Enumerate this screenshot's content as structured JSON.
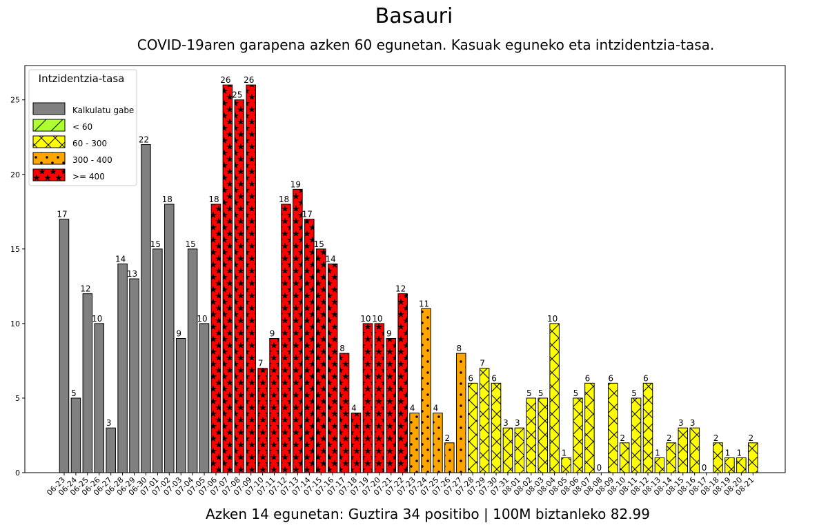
{
  "title": "Basauri",
  "subtitle": "COVID-19aren garapena azken 60 egunetan. Kasuak eguneko eta intzidentzia-tasa.",
  "footer": "Azken 14 egunetan: Guztira 34 positibo | 100M biztanleko 82.99",
  "colors": {
    "none": "#808080",
    "lt60": "#adff2f",
    "c60_300": "#ffff00",
    "c300_400": "#ffa500",
    "ge400": "#ff0000"
  },
  "legend": {
    "title": "Intzidentzia-tasa",
    "placement": "upper-left",
    "items": [
      {
        "label": "Kalkulatu gabe",
        "category": "none",
        "pattern": "none"
      },
      {
        "label": "< 60",
        "category": "lt60",
        "pattern": "slash"
      },
      {
        "label": "60 - 300",
        "category": "c60_300",
        "pattern": "cross"
      },
      {
        "label": "300 - 400",
        "category": "c300_400",
        "pattern": "dots"
      },
      {
        "label": ">= 400",
        "category": "ge400",
        "pattern": "stars"
      }
    ]
  },
  "chart_data": {
    "type": "bar",
    "ylim": [
      0,
      27.3
    ],
    "yticks": [
      0,
      5,
      10,
      15,
      20,
      25
    ],
    "categories": [
      "06-23",
      "06-24",
      "06-25",
      "06-26",
      "06-27",
      "06-28",
      "06-29",
      "06-30",
      "07-01",
      "07-02",
      "07-03",
      "07-04",
      "07-05",
      "07-06",
      "07-07",
      "07-08",
      "07-09",
      "07-10",
      "07-11",
      "07-12",
      "07-13",
      "07-14",
      "07-15",
      "07-16",
      "07-17",
      "07-18",
      "07-19",
      "07-20",
      "07-21",
      "07-22",
      "07-23",
      "07-24",
      "07-25",
      "07-26",
      "07-27",
      "07-28",
      "07-29",
      "07-30",
      "07-31",
      "08-01",
      "08-02",
      "08-03",
      "08-04",
      "08-05",
      "08-06",
      "08-07",
      "08-08",
      "08-09",
      "08-10",
      "08-11",
      "08-12",
      "08-13",
      "08-14",
      "08-15",
      "08-16",
      "08-17",
      "08-18",
      "08-19",
      "08-20",
      "08-21"
    ],
    "values": [
      17,
      5,
      12,
      10,
      3,
      14,
      13,
      22,
      15,
      18,
      9,
      15,
      10,
      18,
      26,
      25,
      26,
      7,
      9,
      18,
      19,
      17,
      15,
      14,
      8,
      4,
      10,
      10,
      9,
      12,
      4,
      11,
      4,
      2,
      8,
      6,
      7,
      6,
      3,
      3,
      5,
      5,
      10,
      1,
      5,
      6,
      0,
      6,
      2,
      5,
      6,
      1,
      2,
      3,
      3,
      0,
      2,
      1,
      1,
      2
    ],
    "rate_category": [
      "none",
      "none",
      "none",
      "none",
      "none",
      "none",
      "none",
      "none",
      "none",
      "none",
      "none",
      "none",
      "none",
      "ge400",
      "ge400",
      "ge400",
      "ge400",
      "ge400",
      "ge400",
      "ge400",
      "ge400",
      "ge400",
      "ge400",
      "ge400",
      "ge400",
      "ge400",
      "ge400",
      "ge400",
      "ge400",
      "ge400",
      "c300_400",
      "c300_400",
      "c300_400",
      "c300_400",
      "c300_400",
      "c60_300",
      "c60_300",
      "c60_300",
      "c60_300",
      "c60_300",
      "c60_300",
      "c60_300",
      "c60_300",
      "c60_300",
      "c60_300",
      "c60_300",
      "c60_300",
      "c60_300",
      "c60_300",
      "c60_300",
      "c60_300",
      "c60_300",
      "c60_300",
      "c60_300",
      "c60_300",
      "c60_300",
      "c60_300",
      "c60_300",
      "c60_300",
      "c60_300"
    ]
  }
}
